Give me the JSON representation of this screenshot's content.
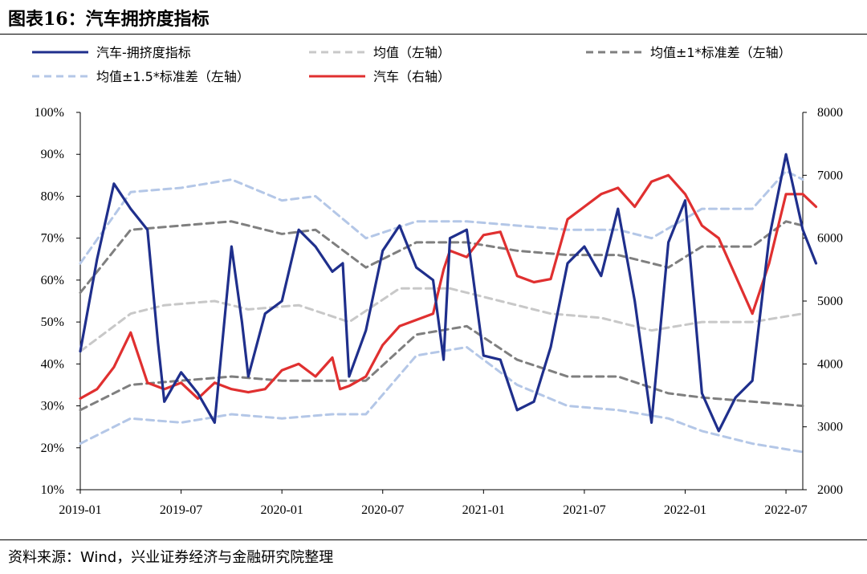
{
  "title": "图表16：汽车拥挤度指标",
  "source": "资料来源：Wind，兴业证券经济与金融研究院整理",
  "colors": {
    "crowding": "#1f2f8c",
    "mean": "#c8c8c8",
    "band1": "#7f7f7f",
    "band15": "#b4c7e7",
    "auto": "#e03030"
  },
  "chart_data": {
    "type": "line",
    "legend": [
      {
        "key": "crowding",
        "label": "汽车-拥挤度指标",
        "style": "solid"
      },
      {
        "key": "mean",
        "label": "均值（左轴）",
        "style": "dashed"
      },
      {
        "key": "band1",
        "label": "均值±1*标准差（左轴）",
        "style": "dashed"
      },
      {
        "key": "band15",
        "label": "均值±1.5*标准差（左轴）",
        "style": "dashed"
      },
      {
        "key": "auto",
        "label": "汽车（右轴）",
        "style": "solid"
      }
    ],
    "x_ticks": [
      "2019-01",
      "2019-07",
      "2020-01",
      "2020-07",
      "2021-01",
      "2021-07",
      "2022-01",
      "2022-07"
    ],
    "x_range": [
      "2019-01",
      "2022-08"
    ],
    "y_left": {
      "range": [
        0.1,
        1.0
      ],
      "ticks": [
        "10%",
        "20%",
        "30%",
        "40%",
        "50%",
        "60%",
        "70%",
        "80%",
        "90%",
        "100%"
      ]
    },
    "y_right": {
      "range": [
        2000,
        8000
      ],
      "ticks": [
        "2000",
        "3000",
        "4000",
        "5000",
        "6000",
        "7000",
        "8000"
      ]
    },
    "series": [
      {
        "key": "crowding",
        "axis": "left",
        "points": [
          [
            "2019-01",
            0.43
          ],
          [
            "2019-02",
            0.65
          ],
          [
            "2019-03",
            0.83
          ],
          [
            "2019-04",
            0.77
          ],
          [
            "2019-05",
            0.72
          ],
          [
            "2019-05-20",
            0.45
          ],
          [
            "2019-06",
            0.31
          ],
          [
            "2019-07",
            0.38
          ],
          [
            "2019-08",
            0.33
          ],
          [
            "2019-09",
            0.26
          ],
          [
            "2019-10",
            0.68
          ],
          [
            "2019-10-20",
            0.5
          ],
          [
            "2019-11",
            0.37
          ],
          [
            "2019-12",
            0.52
          ],
          [
            "2020-01",
            0.55
          ],
          [
            "2020-02",
            0.72
          ],
          [
            "2020-03",
            0.68
          ],
          [
            "2020-04",
            0.62
          ],
          [
            "2020-04-20",
            0.64
          ],
          [
            "2020-05",
            0.37
          ],
          [
            "2020-06",
            0.48
          ],
          [
            "2020-07",
            0.67
          ],
          [
            "2020-08",
            0.73
          ],
          [
            "2020-09",
            0.63
          ],
          [
            "2020-10",
            0.6
          ],
          [
            "2020-10-20",
            0.41
          ],
          [
            "2020-11",
            0.7
          ],
          [
            "2020-12",
            0.72
          ],
          [
            "2021-01",
            0.42
          ],
          [
            "2021-02",
            0.41
          ],
          [
            "2021-03",
            0.29
          ],
          [
            "2021-04",
            0.31
          ],
          [
            "2021-05",
            0.44
          ],
          [
            "2021-06",
            0.64
          ],
          [
            "2021-07",
            0.68
          ],
          [
            "2021-08",
            0.61
          ],
          [
            "2021-09",
            0.77
          ],
          [
            "2021-10",
            0.55
          ],
          [
            "2021-11",
            0.26
          ],
          [
            "2021-12",
            0.69
          ],
          [
            "2022-01",
            0.79
          ],
          [
            "2022-02",
            0.33
          ],
          [
            "2022-03",
            0.24
          ],
          [
            "2022-04",
            0.32
          ],
          [
            "2022-05",
            0.36
          ],
          [
            "2022-06",
            0.7
          ],
          [
            "2022-07",
            0.9
          ],
          [
            "2022-08",
            0.72
          ],
          [
            "2022-08-25",
            0.64
          ]
        ]
      },
      {
        "key": "mean",
        "axis": "left",
        "points": [
          [
            "2019-01",
            0.43
          ],
          [
            "2019-04",
            0.52
          ],
          [
            "2019-06",
            0.54
          ],
          [
            "2019-09",
            0.55
          ],
          [
            "2019-11",
            0.53
          ],
          [
            "2020-02",
            0.54
          ],
          [
            "2020-05",
            0.5
          ],
          [
            "2020-08",
            0.58
          ],
          [
            "2020-11",
            0.58
          ],
          [
            "2021-02",
            0.55
          ],
          [
            "2021-05",
            0.52
          ],
          [
            "2021-08",
            0.51
          ],
          [
            "2021-11",
            0.48
          ],
          [
            "2022-02",
            0.5
          ],
          [
            "2022-05",
            0.5
          ],
          [
            "2022-08",
            0.52
          ]
        ]
      },
      {
        "key": "mean_plus1",
        "axis": "left",
        "style_key": "band1",
        "points": [
          [
            "2019-01",
            0.57
          ],
          [
            "2019-04",
            0.72
          ],
          [
            "2019-07",
            0.73
          ],
          [
            "2019-10",
            0.74
          ],
          [
            "2020-01",
            0.71
          ],
          [
            "2020-03",
            0.72
          ],
          [
            "2020-06",
            0.63
          ],
          [
            "2020-09",
            0.69
          ],
          [
            "2020-12",
            0.69
          ],
          [
            "2021-03",
            0.67
          ],
          [
            "2021-06",
            0.66
          ],
          [
            "2021-09",
            0.66
          ],
          [
            "2021-12",
            0.63
          ],
          [
            "2022-02",
            0.68
          ],
          [
            "2022-05",
            0.68
          ],
          [
            "2022-07",
            0.74
          ],
          [
            "2022-08",
            0.73
          ]
        ]
      },
      {
        "key": "mean_minus1",
        "axis": "left",
        "style_key": "band1",
        "points": [
          [
            "2019-01",
            0.29
          ],
          [
            "2019-04",
            0.35
          ],
          [
            "2019-07",
            0.36
          ],
          [
            "2019-10",
            0.37
          ],
          [
            "2020-01",
            0.36
          ],
          [
            "2020-04",
            0.36
          ],
          [
            "2020-06",
            0.36
          ],
          [
            "2020-09",
            0.47
          ],
          [
            "2020-12",
            0.49
          ],
          [
            "2021-03",
            0.41
          ],
          [
            "2021-06",
            0.37
          ],
          [
            "2021-09",
            0.37
          ],
          [
            "2021-12",
            0.33
          ],
          [
            "2022-02",
            0.32
          ],
          [
            "2022-05",
            0.31
          ],
          [
            "2022-08",
            0.3
          ]
        ]
      },
      {
        "key": "mean_plus15",
        "axis": "left",
        "style_key": "band15",
        "points": [
          [
            "2019-01",
            0.64
          ],
          [
            "2019-04",
            0.81
          ],
          [
            "2019-07",
            0.82
          ],
          [
            "2019-10",
            0.84
          ],
          [
            "2020-01",
            0.79
          ],
          [
            "2020-03",
            0.8
          ],
          [
            "2020-06",
            0.7
          ],
          [
            "2020-09",
            0.74
          ],
          [
            "2020-12",
            0.74
          ],
          [
            "2021-03",
            0.73
          ],
          [
            "2021-06",
            0.72
          ],
          [
            "2021-09",
            0.72
          ],
          [
            "2021-11",
            0.7
          ],
          [
            "2022-02",
            0.77
          ],
          [
            "2022-05",
            0.77
          ],
          [
            "2022-07",
            0.86
          ],
          [
            "2022-08",
            0.84
          ]
        ]
      },
      {
        "key": "mean_minus15",
        "axis": "left",
        "style_key": "band15",
        "points": [
          [
            "2019-01",
            0.21
          ],
          [
            "2019-04",
            0.27
          ],
          [
            "2019-07",
            0.26
          ],
          [
            "2019-10",
            0.28
          ],
          [
            "2020-01",
            0.27
          ],
          [
            "2020-04",
            0.28
          ],
          [
            "2020-06",
            0.28
          ],
          [
            "2020-09",
            0.42
          ],
          [
            "2020-12",
            0.44
          ],
          [
            "2021-03",
            0.35
          ],
          [
            "2021-06",
            0.3
          ],
          [
            "2021-09",
            0.29
          ],
          [
            "2021-12",
            0.27
          ],
          [
            "2022-02",
            0.24
          ],
          [
            "2022-05",
            0.21
          ],
          [
            "2022-08",
            0.19
          ]
        ]
      },
      {
        "key": "auto",
        "axis": "right",
        "points": [
          [
            "2019-01",
            3450
          ],
          [
            "2019-02",
            3600
          ],
          [
            "2019-03",
            3950
          ],
          [
            "2019-04",
            4500
          ],
          [
            "2019-04-20",
            4000
          ],
          [
            "2019-05",
            3700
          ],
          [
            "2019-06",
            3600
          ],
          [
            "2019-07",
            3700
          ],
          [
            "2019-08",
            3450
          ],
          [
            "2019-09",
            3700
          ],
          [
            "2019-10",
            3600
          ],
          [
            "2019-11",
            3550
          ],
          [
            "2019-12",
            3600
          ],
          [
            "2020-01",
            3900
          ],
          [
            "2020-02",
            4000
          ],
          [
            "2020-03",
            3800
          ],
          [
            "2020-04",
            4100
          ],
          [
            "2020-04-15",
            3600
          ],
          [
            "2020-05",
            3650
          ],
          [
            "2020-06",
            3800
          ],
          [
            "2020-07",
            4300
          ],
          [
            "2020-08",
            4600
          ],
          [
            "2020-09",
            4700
          ],
          [
            "2020-10",
            4800
          ],
          [
            "2020-10-20",
            5500
          ],
          [
            "2020-11",
            5800
          ],
          [
            "2020-12",
            5700
          ],
          [
            "2021-01",
            6050
          ],
          [
            "2021-02",
            6100
          ],
          [
            "2021-03",
            5400
          ],
          [
            "2021-04",
            5300
          ],
          [
            "2021-05",
            5350
          ],
          [
            "2021-06",
            6300
          ],
          [
            "2021-07",
            6500
          ],
          [
            "2021-08",
            6700
          ],
          [
            "2021-09",
            6800
          ],
          [
            "2021-10",
            6500
          ],
          [
            "2021-11",
            6900
          ],
          [
            "2021-12",
            7000
          ],
          [
            "2022-01",
            6700
          ],
          [
            "2022-02",
            6200
          ],
          [
            "2022-03",
            6000
          ],
          [
            "2022-04",
            5400
          ],
          [
            "2022-05",
            4800
          ],
          [
            "2022-06",
            5600
          ],
          [
            "2022-07",
            6700
          ],
          [
            "2022-08",
            6700
          ],
          [
            "2022-08-25",
            6500
          ]
        ]
      }
    ]
  }
}
